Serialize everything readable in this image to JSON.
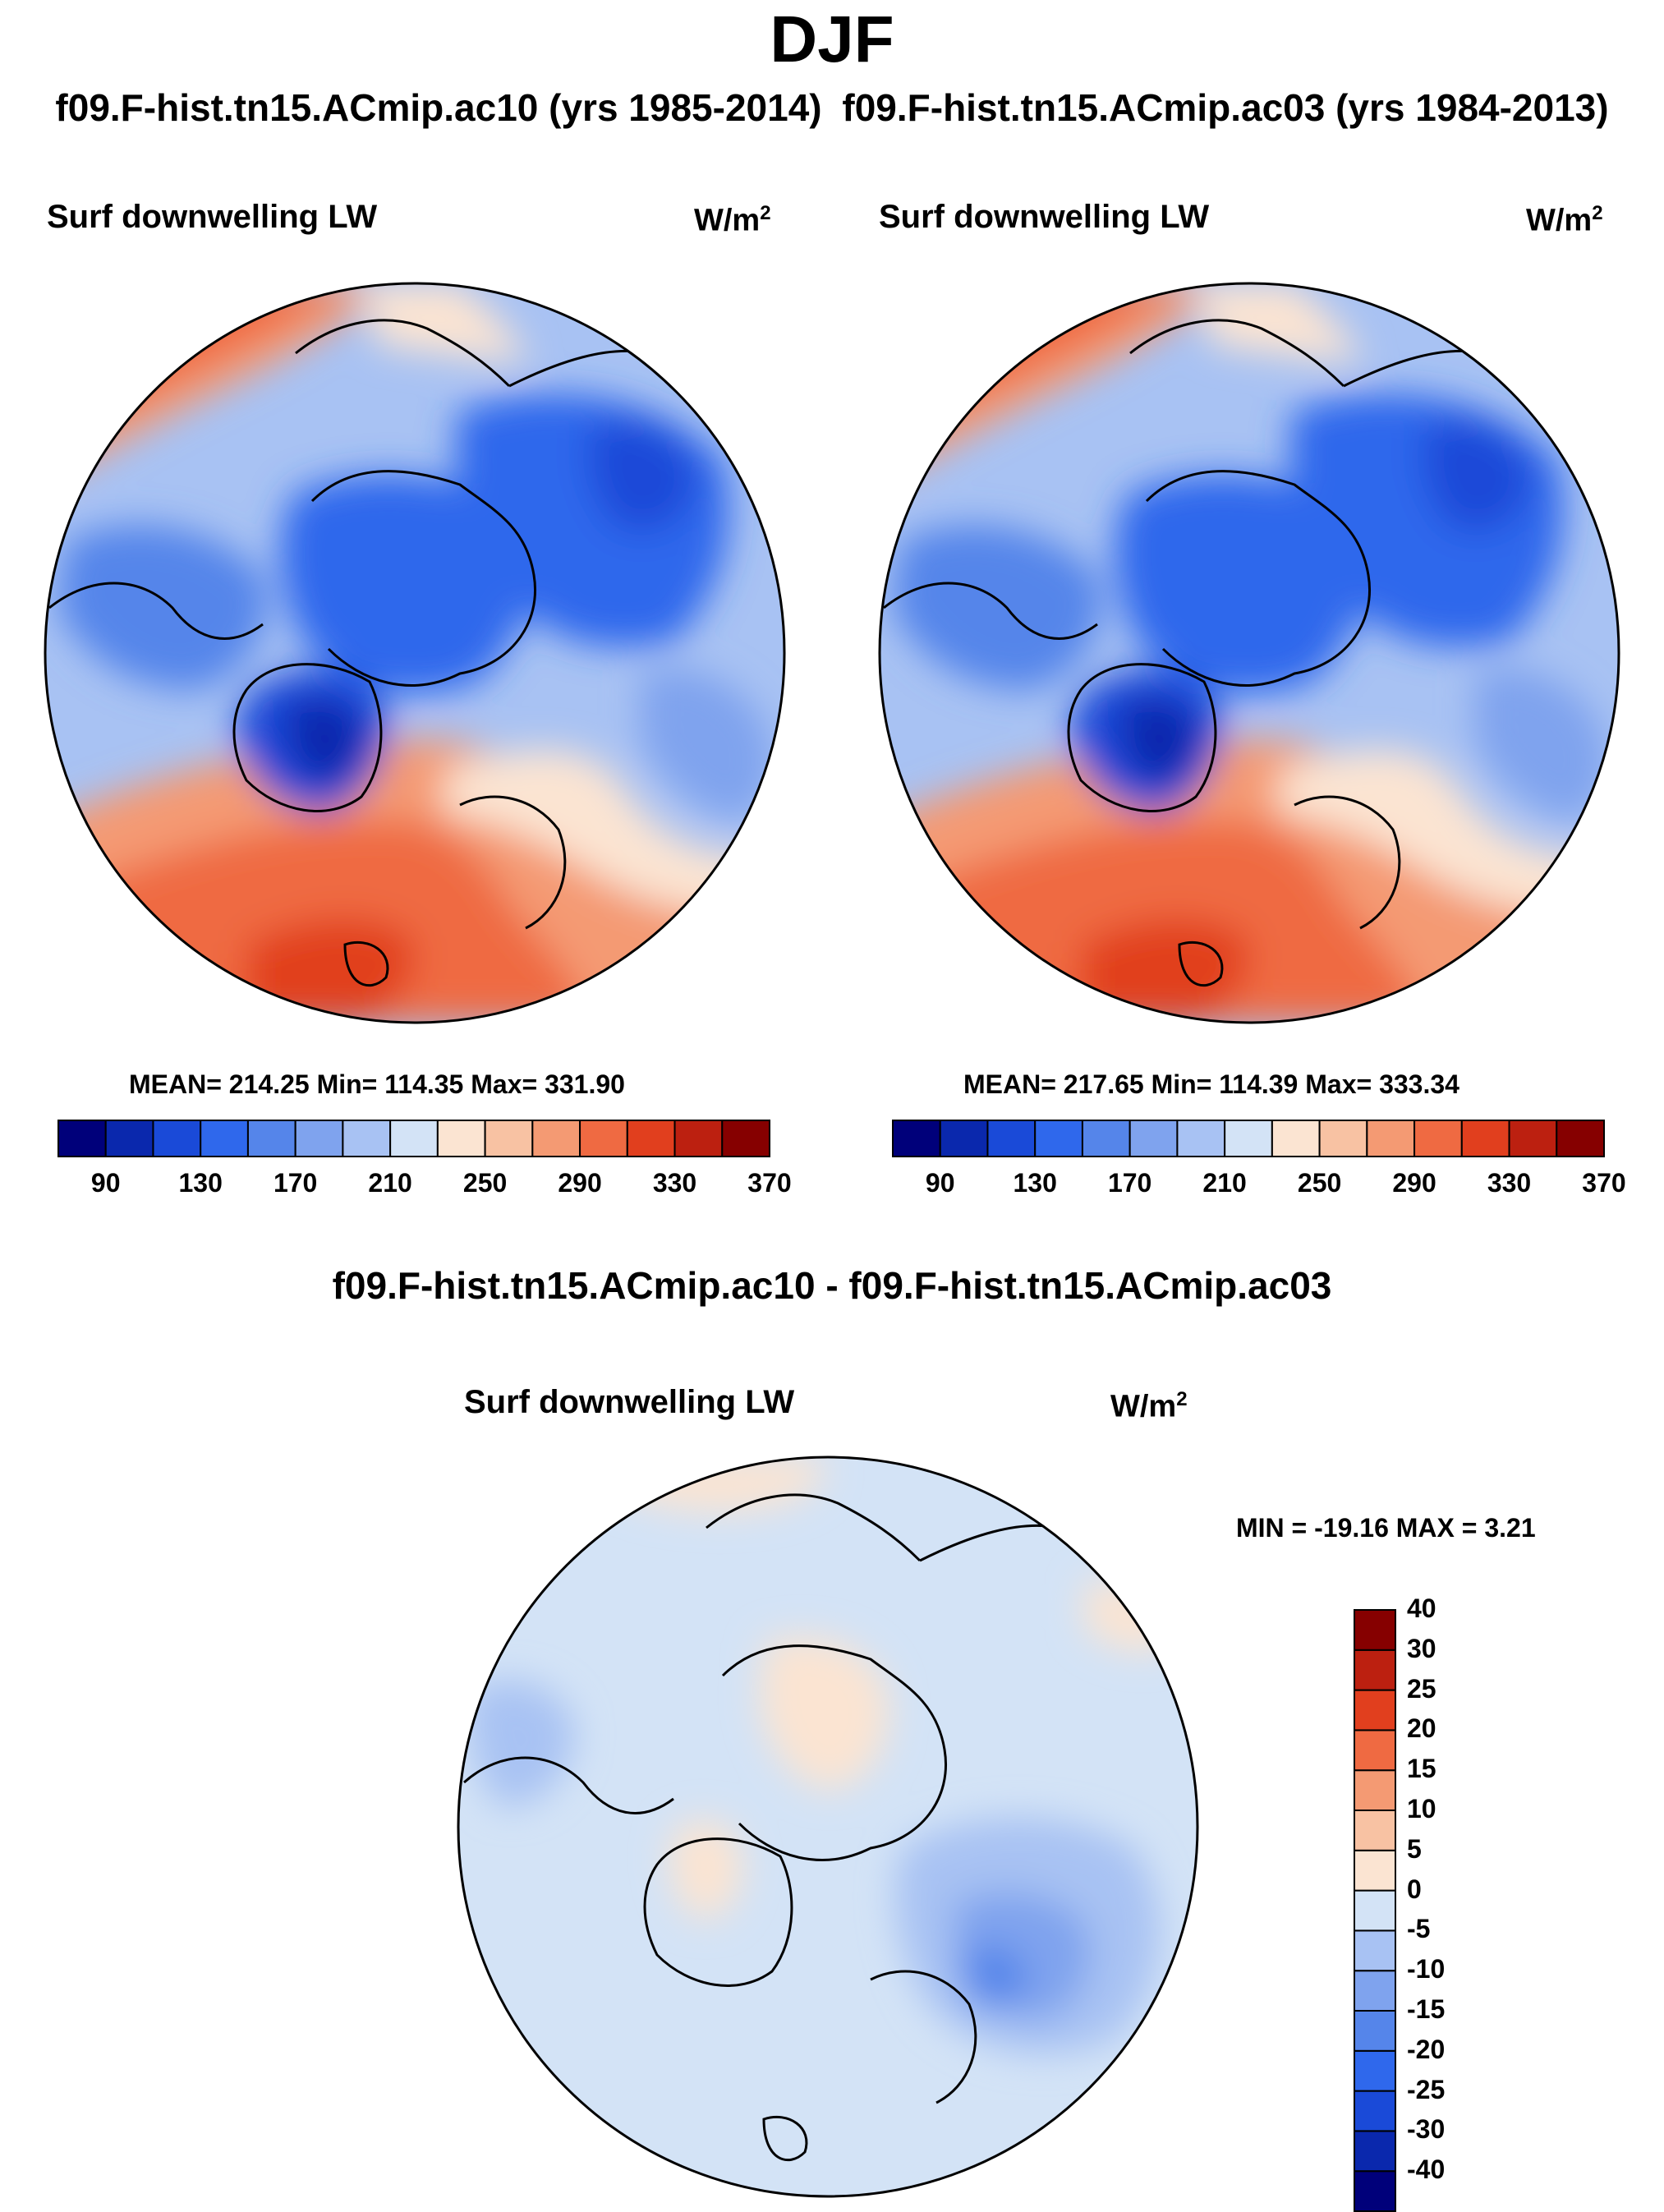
{
  "figure": {
    "season": "DJF",
    "panels": [
      {
        "case": "f09.F-hist.tn15.ACmip.ac10 (yrs 1985-2014)"
      },
      {
        "case": "f09.F-hist.tn15.ACmip.ac03 (yrs 1984-2013)"
      }
    ],
    "diff_title": "f09.F-hist.tn15.ACmip.ac10 - f09.F-hist.tn15.ACmip.ac03"
  },
  "chart_data": [
    {
      "type": "heatmap",
      "projection": "north-polar-stereographic",
      "title": "Surf downwelling LW",
      "units": "W/m",
      "units_exponent": "2",
      "stats_text": "MEAN= 214.25  Min= 114.35  Max= 331.90",
      "stats": {
        "mean": 214.25,
        "min": 114.35,
        "max": 331.9
      },
      "colorbar": {
        "orientation": "horizontal",
        "levels": [
          90,
          110,
          130,
          150,
          170,
          190,
          210,
          230,
          250,
          270,
          290,
          310,
          330,
          350,
          370
        ],
        "tick_labels": [
          "90",
          "130",
          "170",
          "210",
          "250",
          "290",
          "330",
          "370"
        ],
        "colors": [
          "#00007a",
          "#0a28ad",
          "#1a4ad8",
          "#2f68ec",
          "#5585ea",
          "#7fa3ee",
          "#a8c2f3",
          "#d3e3f6",
          "#fbe4d2",
          "#f8c2a3",
          "#f49a73",
          "#ef6a42",
          "#e13f1e",
          "#bc2010",
          "#860000"
        ]
      }
    },
    {
      "type": "heatmap",
      "projection": "north-polar-stereographic",
      "title": "Surf downwelling LW",
      "units": "W/m",
      "units_exponent": "2",
      "stats_text": "MEAN= 217.65  Min= 114.39  Max= 333.34",
      "stats": {
        "mean": 217.65,
        "min": 114.39,
        "max": 333.34
      },
      "colorbar": {
        "orientation": "horizontal",
        "levels": [
          90,
          110,
          130,
          150,
          170,
          190,
          210,
          230,
          250,
          270,
          290,
          310,
          330,
          350,
          370
        ],
        "tick_labels": [
          "90",
          "130",
          "170",
          "210",
          "250",
          "290",
          "330",
          "370"
        ],
        "colors": [
          "#00007a",
          "#0a28ad",
          "#1a4ad8",
          "#2f68ec",
          "#5585ea",
          "#7fa3ee",
          "#a8c2f3",
          "#d3e3f6",
          "#fbe4d2",
          "#f8c2a3",
          "#f49a73",
          "#ef6a42",
          "#e13f1e",
          "#bc2010",
          "#860000"
        ]
      }
    },
    {
      "type": "heatmap",
      "projection": "north-polar-stereographic",
      "title": "Surf downwelling LW",
      "units": "W/m",
      "units_exponent": "2",
      "stats_text": "MIN = -19.16 MAX =   3.21",
      "stats": {
        "min": -19.16,
        "max": 3.21
      },
      "colorbar": {
        "orientation": "vertical",
        "levels": [
          -40,
          -30,
          -25,
          -20,
          -15,
          -10,
          -5,
          0,
          5,
          10,
          15,
          20,
          25,
          30,
          40
        ],
        "tick_labels": [
          "-40",
          "-30",
          "-25",
          "-20",
          "-15",
          "-10",
          "-5",
          "0",
          "5",
          "10",
          "15",
          "20",
          "25",
          "30",
          "40"
        ],
        "colors": [
          "#00007a",
          "#0a28ad",
          "#1a4ad8",
          "#2f68ec",
          "#5585ea",
          "#7fa3ee",
          "#a8c2f3",
          "#d3e3f6",
          "#fbe4d2",
          "#f8c2a3",
          "#f49a73",
          "#ef6a42",
          "#e13f1e",
          "#bc2010",
          "#860000"
        ]
      }
    }
  ]
}
